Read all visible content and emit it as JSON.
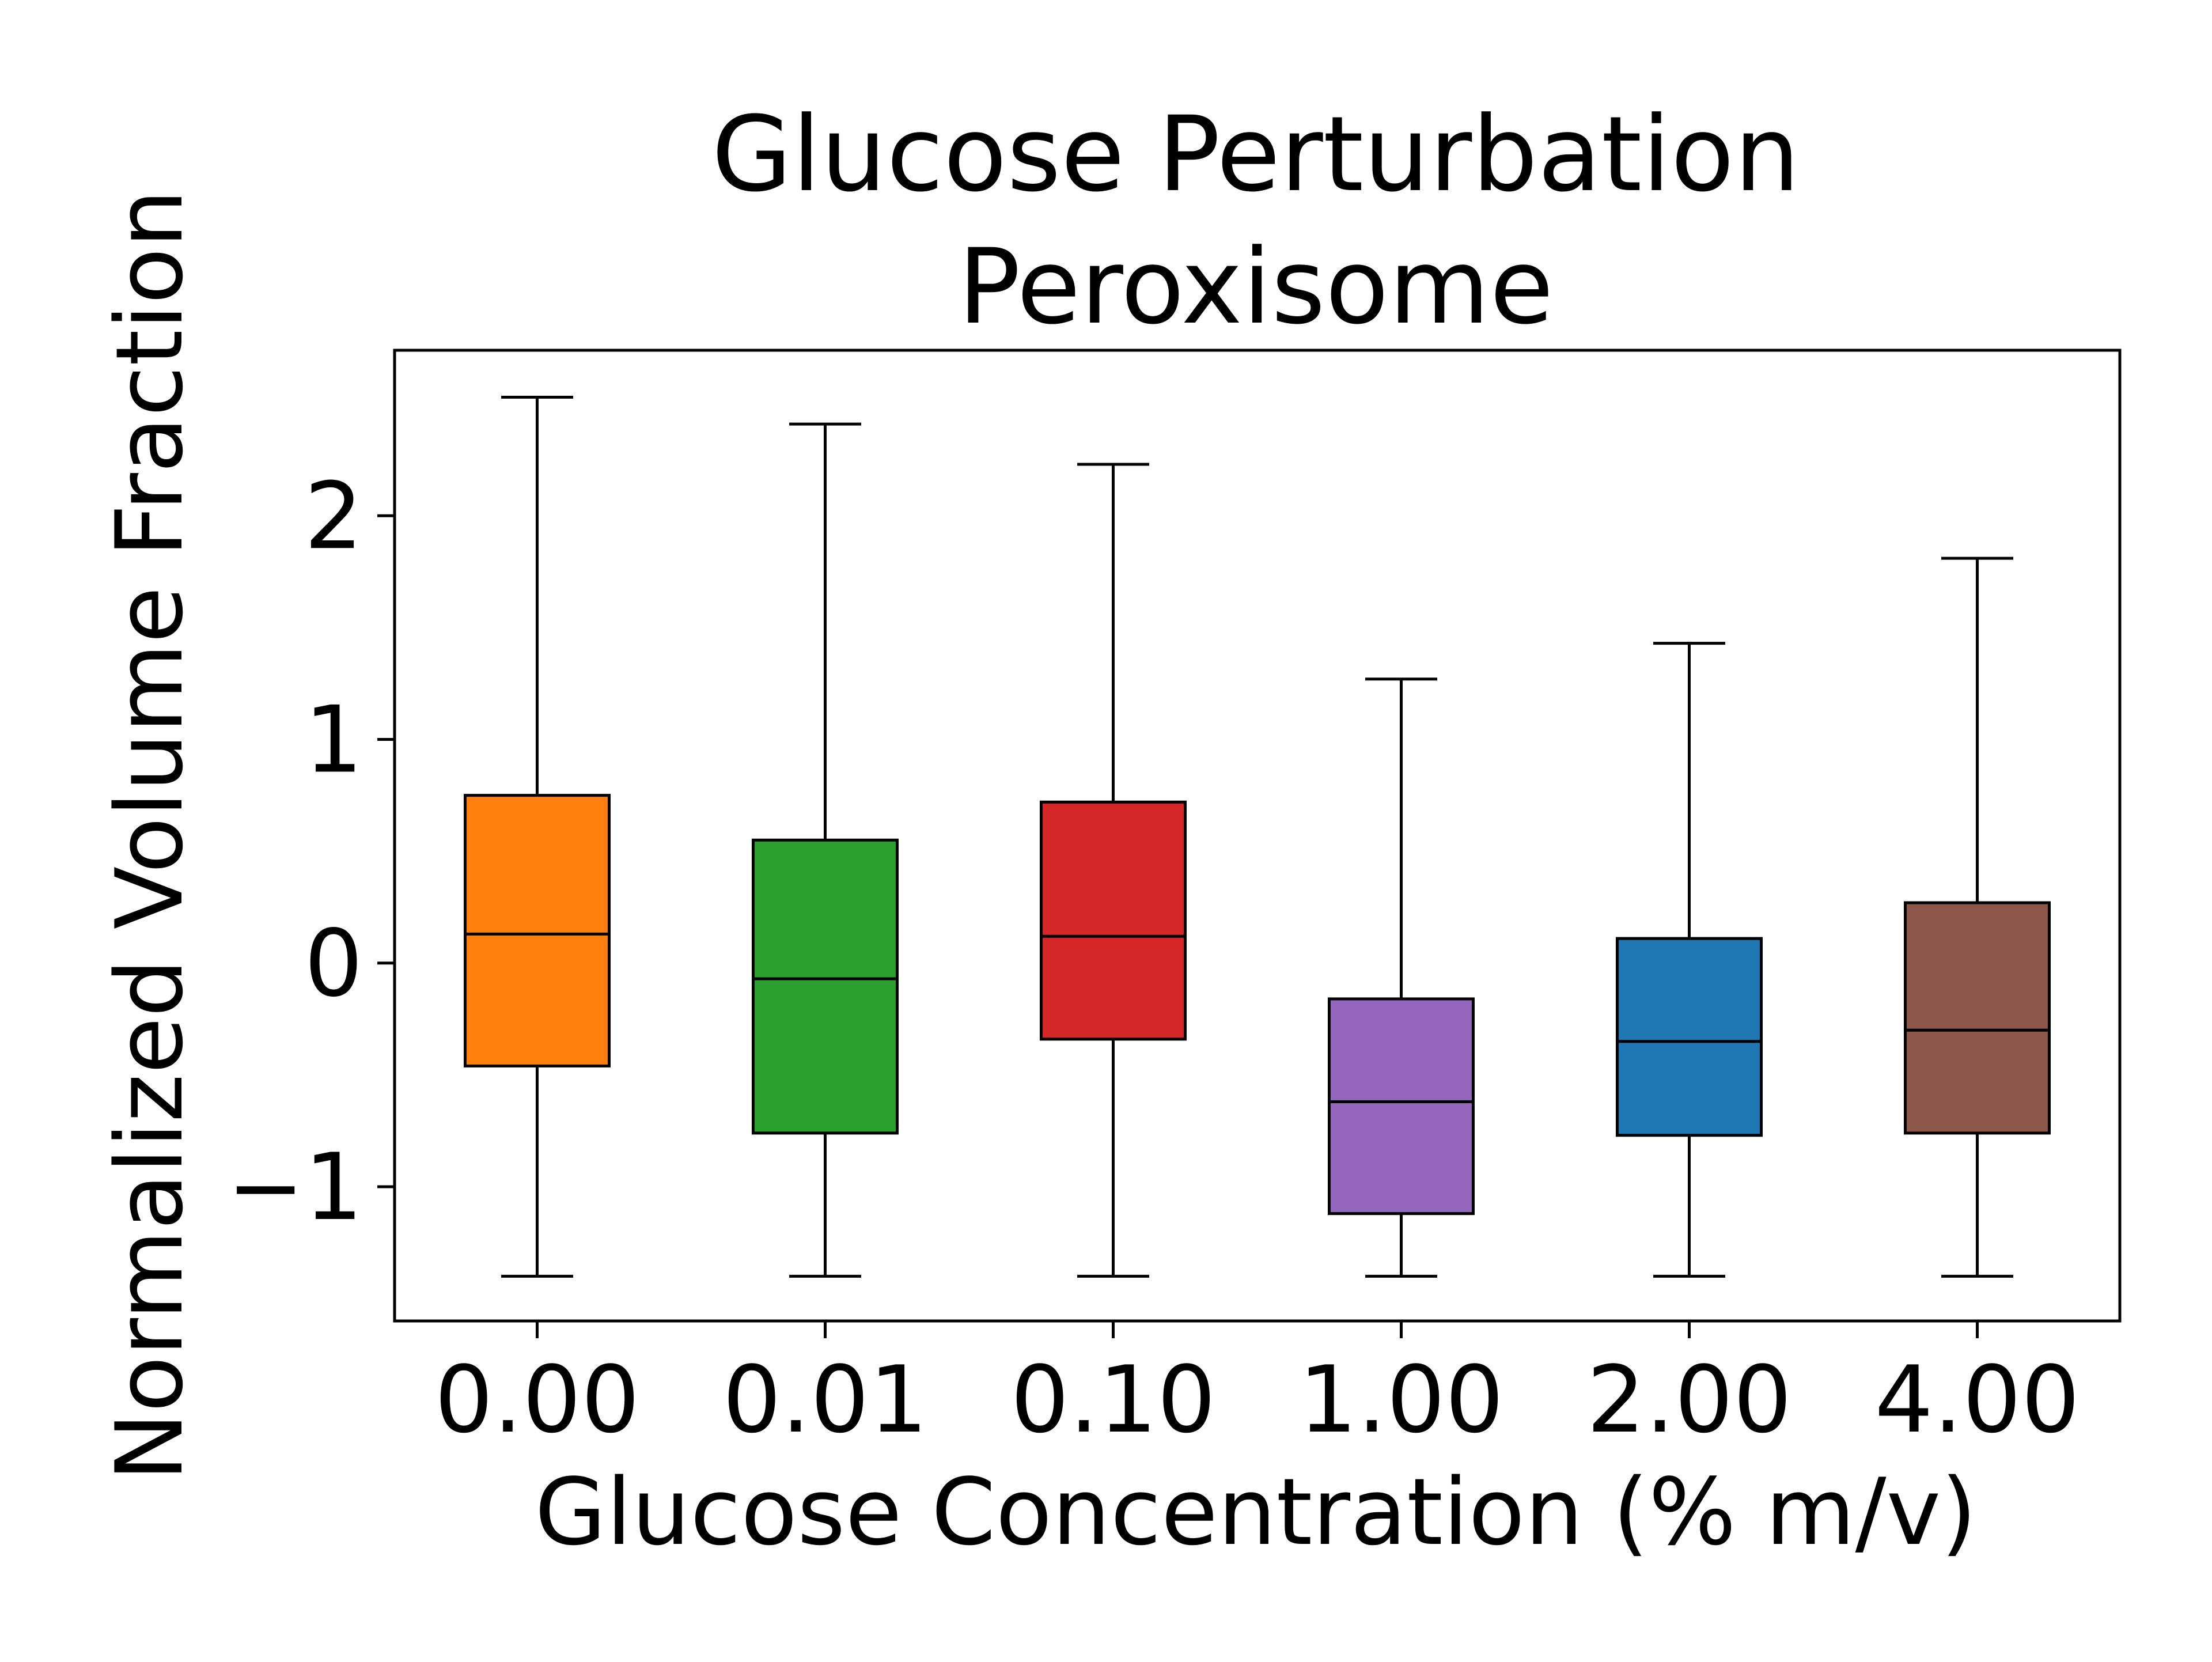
{
  "chart_data": {
    "type": "box",
    "title": [
      "Glucose Perturbation",
      "Peroxisome"
    ],
    "xlabel": "Glucose Concentration (% m/v)",
    "ylabel": "Normalized Volume Fraction",
    "categories": [
      "0.00",
      "0.01",
      "0.10",
      "1.00",
      "2.00",
      "4.00"
    ],
    "yticks": [
      -1,
      0,
      1,
      2
    ],
    "ytick_labels": [
      "−1",
      "0",
      "1",
      "2"
    ],
    "ylim": [
      -1.6,
      2.74
    ],
    "grid": false,
    "legend": "none",
    "boxes": [
      {
        "category": "0.00",
        "whisker_low": -1.4,
        "q1": -0.46,
        "median": 0.13,
        "q3": 0.75,
        "whisker_high": 2.53,
        "color": "#ff7f0e"
      },
      {
        "category": "0.01",
        "whisker_low": -1.4,
        "q1": -0.76,
        "median": -0.07,
        "q3": 0.55,
        "whisker_high": 2.41,
        "color": "#2ca02c"
      },
      {
        "category": "0.10",
        "whisker_low": -1.4,
        "q1": -0.34,
        "median": 0.12,
        "q3": 0.72,
        "whisker_high": 2.23,
        "color": "#d62728"
      },
      {
        "category": "1.00",
        "whisker_low": -1.4,
        "q1": -1.12,
        "median": -0.62,
        "q3": -0.16,
        "whisker_high": 1.27,
        "color": "#9467bd"
      },
      {
        "category": "2.00",
        "whisker_low": -1.4,
        "q1": -0.77,
        "median": -0.35,
        "q3": 0.11,
        "whisker_high": 1.43,
        "color": "#1f77b4"
      },
      {
        "category": "4.00",
        "whisker_low": -1.4,
        "q1": -0.76,
        "median": -0.3,
        "q3": 0.27,
        "whisker_high": 1.81,
        "color": "#8c564b"
      }
    ]
  }
}
